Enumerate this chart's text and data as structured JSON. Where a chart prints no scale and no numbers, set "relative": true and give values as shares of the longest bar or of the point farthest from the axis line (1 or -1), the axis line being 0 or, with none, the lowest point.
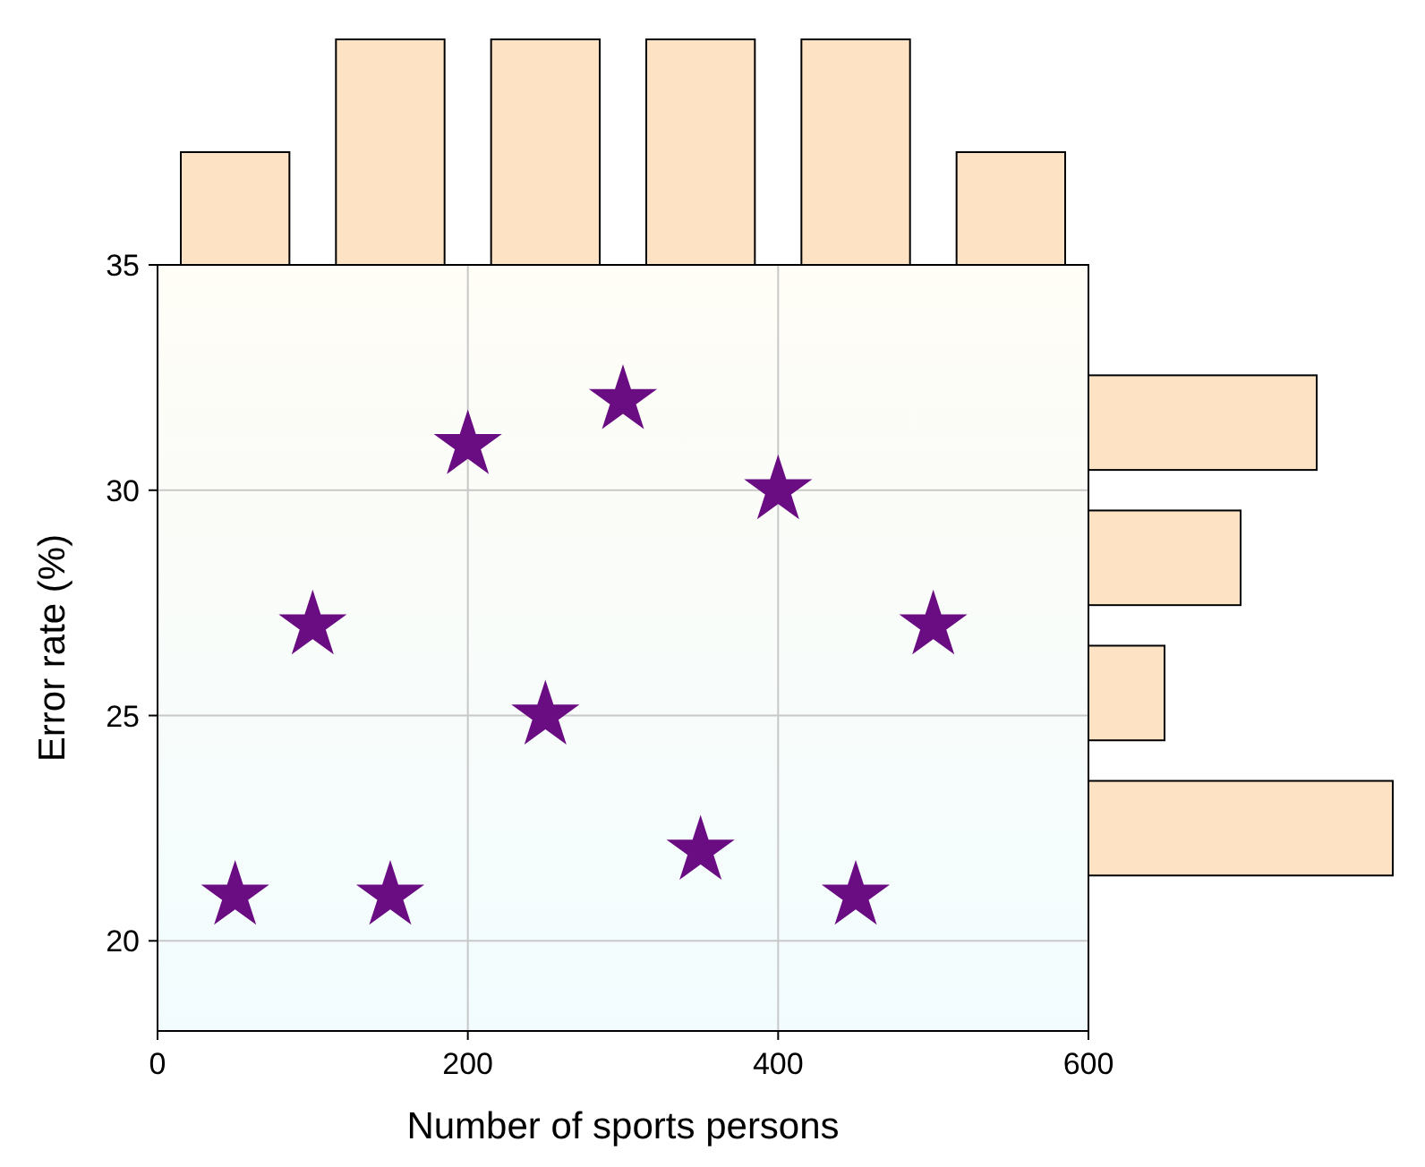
{
  "chart_data": [
    {
      "type": "scatter",
      "xlabel": "Number of sports persons",
      "ylabel": "Error rate (%)",
      "x": [
        50,
        100,
        150,
        200,
        250,
        300,
        350,
        400,
        450,
        500
      ],
      "values": [
        21,
        27,
        21,
        31,
        25,
        32,
        22,
        30,
        21,
        27
      ],
      "color": "#6a0d83",
      "marker": "star",
      "xlim": [
        0,
        600
      ],
      "ylim": [
        18,
        35
      ],
      "xticks": [
        0,
        200,
        400,
        600
      ],
      "yticks": [
        20,
        25,
        30,
        35
      ],
      "grid": true
    },
    {
      "type": "bar",
      "categories": [
        null,
        null,
        null,
        null,
        null,
        null
      ],
      "values": [
        0.5,
        1,
        1,
        1,
        1,
        0.5
      ],
      "relative": true,
      "color": "#fde3c4"
    },
    {
      "type": "bar",
      "orientation": "horizontal",
      "categories": [
        null,
        null,
        null,
        null
      ],
      "values": [
        0.75,
        0.5,
        0.25,
        1
      ],
      "relative": true,
      "color": "#fde3c4"
    }
  ]
}
